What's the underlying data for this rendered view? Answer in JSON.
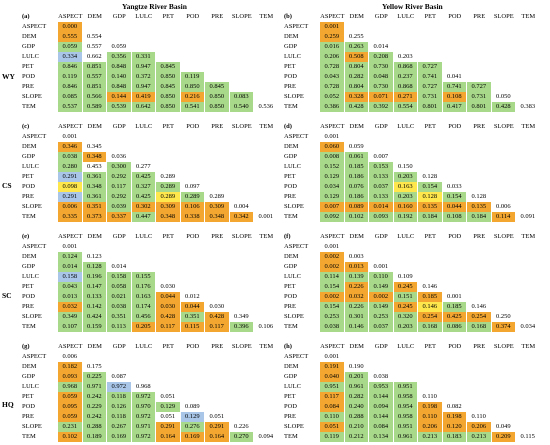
{
  "basins": [
    "Yangtze River Basin",
    "Yellow River Basin"
  ],
  "row_labels": [
    "WY",
    "CS",
    "SC",
    "HQ"
  ],
  "variables": [
    "ASPECT",
    "DEM",
    "GDP",
    "LULC",
    "PET",
    "POD",
    "PRE",
    "SLOPE",
    "TEM"
  ],
  "colors": {
    "orange": "#f4a730",
    "green": "#a8d98a",
    "blue": "#a9c6e8",
    "yellow": "#fde74c"
  },
  "chart_data": {
    "type": "table",
    "title": "",
    "panels": [
      {
        "letter": "(a)",
        "basin": "Yangtze River Basin",
        "row_label": "WY",
        "rows": [
          [
            "0.000"
          ],
          [
            "0.555",
            "0.554"
          ],
          [
            "0.059",
            "0.557",
            "0.059"
          ],
          [
            "0.334",
            "0.662",
            "0.356",
            "0.331"
          ],
          [
            "0.846",
            "0.851",
            "0.848",
            "0.947",
            "0.845"
          ],
          [
            "0.119",
            "0.557",
            "0.140",
            "0.372",
            "0.850",
            "0.119"
          ],
          [
            "0.846",
            "0.851",
            "0.848",
            "0.947",
            "0.845",
            "0.850",
            "0.845"
          ],
          [
            "0.085",
            "0.566",
            "0.144",
            "0.419",
            "0.850",
            "0.216",
            "0.850",
            "0.083"
          ],
          [
            "0.537",
            "0.589",
            "0.539",
            "0.642",
            "0.850",
            "0.541",
            "0.850",
            "0.540",
            "0.536"
          ]
        ],
        "colors": [
          [
            "o"
          ],
          [
            "o",
            "n"
          ],
          [
            "g",
            "n",
            "n"
          ],
          [
            "b",
            "n",
            "g",
            "g"
          ],
          [
            "g",
            "g",
            "g",
            "g",
            "g"
          ],
          [
            "g",
            "g",
            "g",
            "g",
            "g",
            "g"
          ],
          [
            "g",
            "g",
            "g",
            "g",
            "g",
            "g",
            "g"
          ],
          [
            "g",
            "g",
            "o",
            "o",
            "g",
            "o",
            "g",
            "g"
          ],
          [
            "g",
            "g",
            "g",
            "g",
            "g",
            "g",
            "g",
            "g",
            "n"
          ]
        ]
      },
      {
        "letter": "(b)",
        "basin": "Yellow River Basin",
        "row_label": "WY",
        "rows": [
          [
            "0.001"
          ],
          [
            "0.259",
            "0.255"
          ],
          [
            "0.016",
            "0.263",
            "0.014"
          ],
          [
            "0.206",
            "0.508",
            "0.208",
            "0.203"
          ],
          [
            "0.728",
            "0.804",
            "0.730",
            "0.868",
            "0.727"
          ],
          [
            "0.043",
            "0.282",
            "0.048",
            "0.237",
            "0.741",
            "0.041"
          ],
          [
            "0.728",
            "0.804",
            "0.730",
            "0.868",
            "0.727",
            "0.741",
            "0.727"
          ],
          [
            "0.052",
            "0.328",
            "0.071",
            "0.271",
            "0.731",
            "0.108",
            "0.731",
            "0.050"
          ],
          [
            "0.386",
            "0.428",
            "0.392",
            "0.554",
            "0.801",
            "0.417",
            "0.801",
            "0.428",
            "0.383"
          ]
        ],
        "colors": [
          [
            "o"
          ],
          [
            "o",
            "n"
          ],
          [
            "g",
            "g",
            "n"
          ],
          [
            "g",
            "o",
            "g",
            "n"
          ],
          [
            "g",
            "g",
            "g",
            "g",
            "g"
          ],
          [
            "g",
            "g",
            "g",
            "g",
            "g",
            "n"
          ],
          [
            "g",
            "g",
            "g",
            "g",
            "g",
            "g",
            "g"
          ],
          [
            "g",
            "o",
            "o",
            "o",
            "g",
            "o",
            "g",
            "n"
          ],
          [
            "g",
            "g",
            "g",
            "g",
            "g",
            "g",
            "g",
            "g",
            "n"
          ]
        ]
      },
      {
        "letter": "(c)",
        "basin": "Yangtze River Basin",
        "row_label": "CS",
        "rows": [
          [
            "0.001"
          ],
          [
            "0.346",
            "0.345"
          ],
          [
            "0.038",
            "0.348",
            "0.036"
          ],
          [
            "0.280",
            "0.453",
            "0.300",
            "0.277"
          ],
          [
            "0.291",
            "0.361",
            "0.292",
            "0.425",
            "0.289"
          ],
          [
            "0.098",
            "0.348",
            "0.117",
            "0.327",
            "0.289",
            "0.097"
          ],
          [
            "0.291",
            "0.361",
            "0.292",
            "0.425",
            "0.289",
            "0.289",
            "0.289"
          ],
          [
            "0.006",
            "0.351",
            "0.039",
            "0.302",
            "0.309",
            "0.106",
            "0.309",
            "0.004"
          ],
          [
            "0.335",
            "0.373",
            "0.337",
            "0.447",
            "0.348",
            "0.338",
            "0.348",
            "0.342",
            "0.001"
          ]
        ],
        "colors": [
          [
            "n"
          ],
          [
            "o",
            "n"
          ],
          [
            "g",
            "o",
            "n"
          ],
          [
            "g",
            "n",
            "g",
            "n"
          ],
          [
            "b",
            "g",
            "g",
            "g",
            "n"
          ],
          [
            "y",
            "g",
            "g",
            "g",
            "g",
            "n"
          ],
          [
            "b",
            "g",
            "g",
            "g",
            "y",
            "g",
            "n"
          ],
          [
            "o",
            "o",
            "g",
            "o",
            "o",
            "o",
            "o",
            "n"
          ],
          [
            "o",
            "o",
            "o",
            "g",
            "o",
            "o",
            "o",
            "o",
            "n"
          ]
        ]
      },
      {
        "letter": "(d)",
        "basin": "Yellow River Basin",
        "row_label": "CS",
        "rows": [
          [
            "0.001"
          ],
          [
            "0.060",
            "0.059"
          ],
          [
            "0.008",
            "0.061",
            "0.007"
          ],
          [
            "0.152",
            "0.185",
            "0.153",
            "0.150"
          ],
          [
            "0.129",
            "0.186",
            "0.133",
            "0.203",
            "0.128"
          ],
          [
            "0.034",
            "0.076",
            "0.037",
            "0.163",
            "0.154",
            "0.033"
          ],
          [
            "0.129",
            "0.186",
            "0.133",
            "0.203",
            "0.128",
            "0.154",
            "0.128"
          ],
          [
            "0.007",
            "0.089",
            "0.014",
            "0.160",
            "0.135",
            "0.044",
            "0.135",
            "0.006"
          ],
          [
            "0.092",
            "0.102",
            "0.093",
            "0.192",
            "0.184",
            "0.108",
            "0.184",
            "0.114",
            "0.091"
          ]
        ],
        "colors": [
          [
            "n"
          ],
          [
            "o",
            "n"
          ],
          [
            "g",
            "g",
            "n"
          ],
          [
            "g",
            "g",
            "g",
            "n"
          ],
          [
            "g",
            "g",
            "g",
            "g",
            "n"
          ],
          [
            "g",
            "g",
            "g",
            "y",
            "g",
            "n"
          ],
          [
            "g",
            "g",
            "g",
            "g",
            "y",
            "g",
            "n"
          ],
          [
            "o",
            "o",
            "o",
            "o",
            "o",
            "o",
            "o",
            "n"
          ],
          [
            "g",
            "g",
            "g",
            "g",
            "g",
            "g",
            "g",
            "o",
            "n"
          ]
        ]
      },
      {
        "letter": "(e)",
        "basin": "Yangtze River Basin",
        "row_label": "SC",
        "rows": [
          [
            "0.001"
          ],
          [
            "0.124",
            "0.123"
          ],
          [
            "0.014",
            "0.128",
            "0.014"
          ],
          [
            "0.158",
            "0.196",
            "0.158",
            "0.155"
          ],
          [
            "0.043",
            "0.147",
            "0.058",
            "0.176",
            "0.030"
          ],
          [
            "0.013",
            "0.133",
            "0.021",
            "0.163",
            "0.044",
            "0.012"
          ],
          [
            "0.032",
            "0.142",
            "0.038",
            "0.174",
            "0.030",
            "0.044",
            "0.030"
          ],
          [
            "0.349",
            "0.424",
            "0.351",
            "0.456",
            "0.428",
            "0.351",
            "0.428",
            "0.349"
          ],
          [
            "0.107",
            "0.159",
            "0.113",
            "0.205",
            "0.117",
            "0.115",
            "0.117",
            "0.396",
            "0.106"
          ]
        ],
        "colors": [
          [
            "n"
          ],
          [
            "g",
            "n"
          ],
          [
            "g",
            "g",
            "n"
          ],
          [
            "b",
            "g",
            "g",
            "g"
          ],
          [
            "g",
            "g",
            "g",
            "g",
            "n"
          ],
          [
            "g",
            "g",
            "g",
            "g",
            "o",
            "n"
          ],
          [
            "o",
            "g",
            "g",
            "g",
            "o",
            "o",
            "n"
          ],
          [
            "g",
            "g",
            "g",
            "g",
            "o",
            "g",
            "o",
            "n"
          ],
          [
            "g",
            "g",
            "g",
            "o",
            "o",
            "o",
            "o",
            "g",
            "n"
          ]
        ]
      },
      {
        "letter": "(f)",
        "basin": "Yellow River Basin",
        "row_label": "SC",
        "rows": [
          [
            "0.001"
          ],
          [
            "0.002",
            "0.003"
          ],
          [
            "0.002",
            "0.013",
            "0.001"
          ],
          [
            "0.114",
            "0.139",
            "0.110",
            "0.109"
          ],
          [
            "0.154",
            "0.226",
            "0.149",
            "0.245",
            "0.146"
          ],
          [
            "0.002",
            "0.032",
            "0.002",
            "0.151",
            "0.185",
            "0.001"
          ],
          [
            "0.154",
            "0.226",
            "0.149",
            "0.245",
            "0.146",
            "0.185",
            "0.146"
          ],
          [
            "0.253",
            "0.301",
            "0.253",
            "0.320",
            "0.254",
            "0.425",
            "0.254",
            "0.250"
          ],
          [
            "0.038",
            "0.146",
            "0.037",
            "0.203",
            "0.168",
            "0.086",
            "0.168",
            "0.374",
            "0.034"
          ]
        ],
        "colors": [
          [
            "n"
          ],
          [
            "o",
            "n"
          ],
          [
            "o",
            "o",
            "n"
          ],
          [
            "g",
            "g",
            "g",
            "n"
          ],
          [
            "g",
            "o",
            "g",
            "o",
            "n"
          ],
          [
            "o",
            "o",
            "o",
            "g",
            "o",
            "n"
          ],
          [
            "g",
            "g",
            "g",
            "o",
            "y",
            "g",
            "n"
          ],
          [
            "g",
            "g",
            "g",
            "g",
            "o",
            "o",
            "o",
            "n"
          ],
          [
            "g",
            "g",
            "g",
            "g",
            "g",
            "g",
            "g",
            "o",
            "n"
          ]
        ]
      },
      {
        "letter": "(g)",
        "basin": "Yangtze River Basin",
        "row_label": "HQ",
        "rows": [
          [
            "0.006"
          ],
          [
            "0.182",
            "0.175"
          ],
          [
            "0.093",
            "0.225",
            "0.087"
          ],
          [
            "0.968",
            "0.971",
            "0.972",
            "0.968"
          ],
          [
            "0.059",
            "0.242",
            "0.118",
            "0.972",
            "0.051"
          ],
          [
            "0.095",
            "0.229",
            "0.126",
            "0.970",
            "0.129",
            "0.089"
          ],
          [
            "0.059",
            "0.242",
            "0.118",
            "0.972",
            "0.051",
            "0.129",
            "0.051"
          ],
          [
            "0.231",
            "0.288",
            "0.267",
            "0.971",
            "0.291",
            "0.276",
            "0.291",
            "0.226"
          ],
          [
            "0.102",
            "0.189",
            "0.169",
            "0.972",
            "0.164",
            "0.169",
            "0.164",
            "0.270",
            "0.094"
          ]
        ],
        "colors": [
          [
            "n"
          ],
          [
            "o",
            "n"
          ],
          [
            "o",
            "g",
            "n"
          ],
          [
            "g",
            "g",
            "b",
            "n"
          ],
          [
            "o",
            "g",
            "g",
            "g",
            "n"
          ],
          [
            "o",
            "g",
            "g",
            "g",
            "g",
            "n"
          ],
          [
            "o",
            "g",
            "g",
            "g",
            "n",
            "b",
            "n"
          ],
          [
            "g",
            "g",
            "g",
            "g",
            "o",
            "g",
            "o",
            "n"
          ],
          [
            "o",
            "g",
            "g",
            "g",
            "o",
            "o",
            "o",
            "g",
            "n"
          ]
        ]
      },
      {
        "letter": "(h)",
        "basin": "Yellow River Basin",
        "row_label": "HQ",
        "rows": [
          [
            "0.001"
          ],
          [
            "0.191",
            "0.190"
          ],
          [
            "0.040",
            "0.201",
            "0.038"
          ],
          [
            "0.951",
            "0.961",
            "0.953",
            "0.951"
          ],
          [
            "0.117",
            "0.282",
            "0.144",
            "0.958",
            "0.110"
          ],
          [
            "0.084",
            "0.240",
            "0.094",
            "0.954",
            "0.198",
            "0.082"
          ],
          [
            "0.110",
            "0.288",
            "0.144",
            "0.958",
            "0.110",
            "0.198",
            "0.110"
          ],
          [
            "0.051",
            "0.210",
            "0.084",
            "0.951",
            "0.206",
            "0.120",
            "0.206",
            "0.049"
          ],
          [
            "0.119",
            "0.212",
            "0.134",
            "0.961",
            "0.213",
            "0.183",
            "0.213",
            "0.209",
            "0.115"
          ]
        ],
        "colors": [
          [
            "n"
          ],
          [
            "o",
            "n"
          ],
          [
            "o",
            "g",
            "n"
          ],
          [
            "g",
            "g",
            "g",
            "g"
          ],
          [
            "o",
            "g",
            "g",
            "g",
            "n"
          ],
          [
            "o",
            "g",
            "g",
            "g",
            "o",
            "n"
          ],
          [
            "g",
            "g",
            "g",
            "g",
            "o",
            "o",
            "n"
          ],
          [
            "o",
            "g",
            "g",
            "g",
            "o",
            "o",
            "o",
            "n"
          ],
          [
            "g",
            "g",
            "g",
            "g",
            "g",
            "g",
            "g",
            "o",
            "n"
          ]
        ]
      }
    ]
  }
}
